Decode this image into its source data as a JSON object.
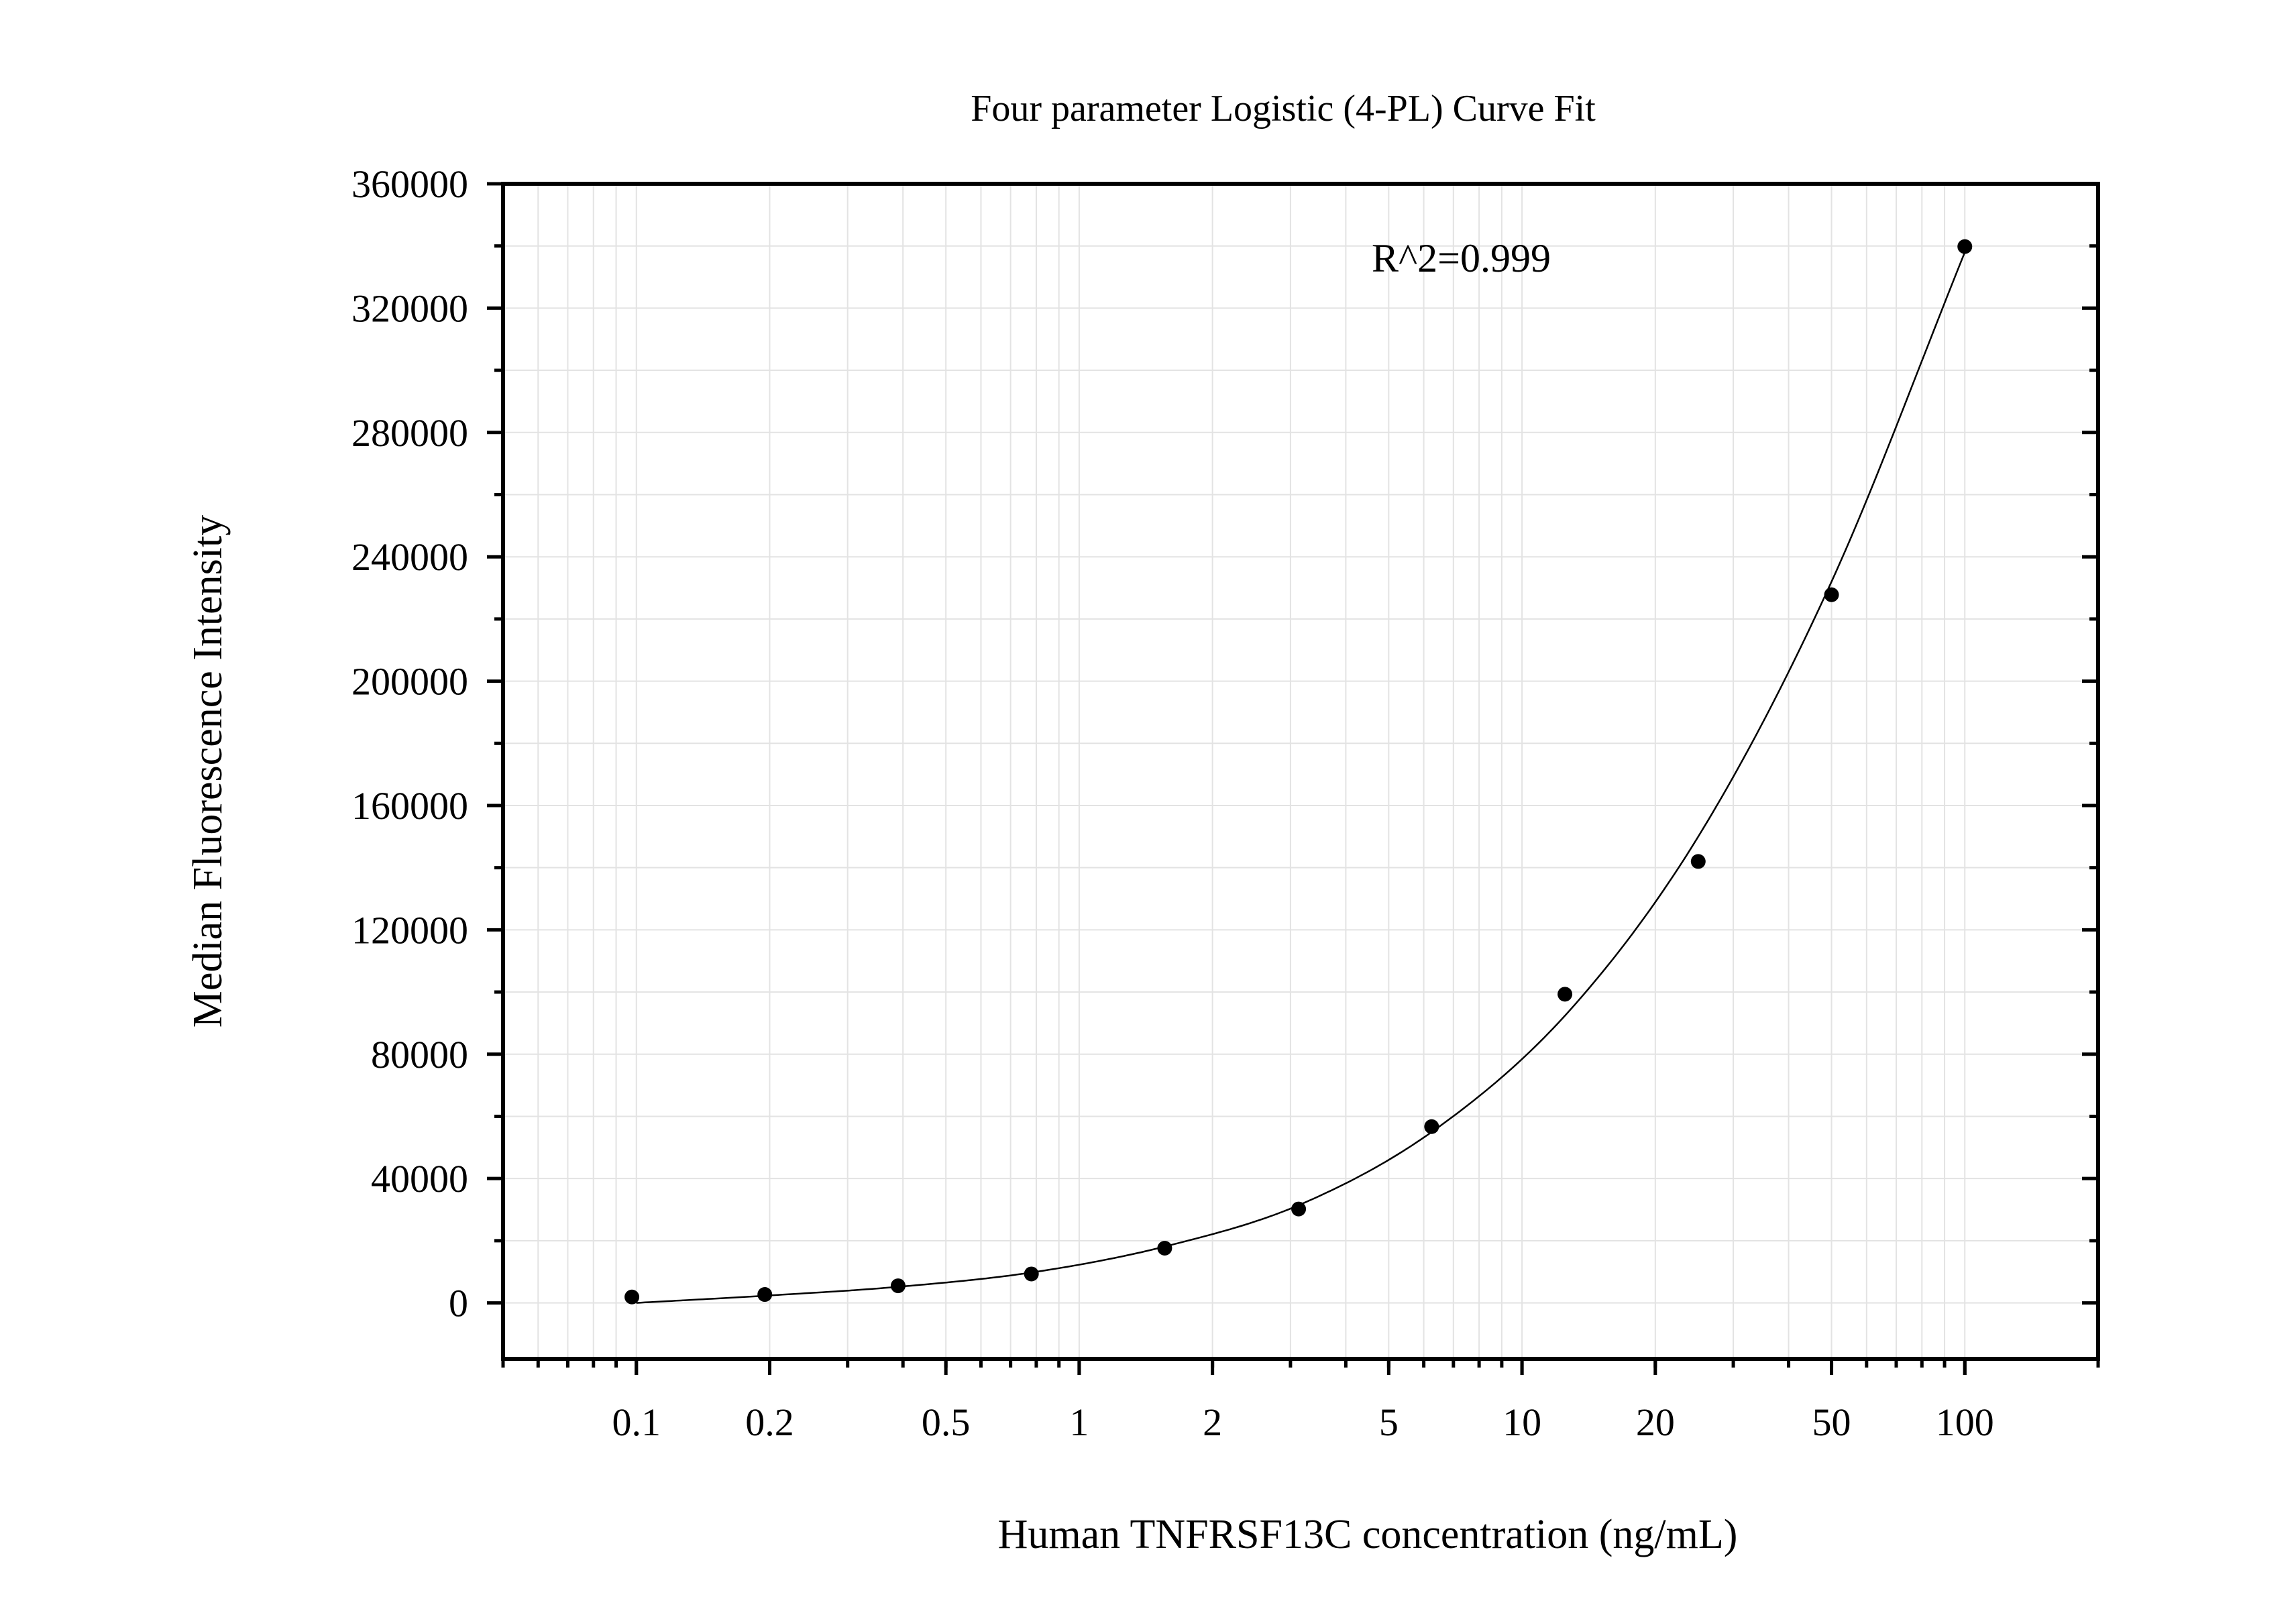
{
  "chart_data": {
    "type": "scatter",
    "title": "Four parameter Logistic (4-PL) Curve Fit",
    "xlabel": "Human TNFRSF13C concentration (ng/mL)",
    "ylabel": "Median Fluorescence Intensity",
    "x_scale": "log",
    "xlim": [
      0.05,
      200
    ],
    "ylim": [
      -18000,
      360000
    ],
    "x_ticks": [
      0.1,
      0.2,
      0.5,
      1,
      2,
      5,
      10,
      20,
      50,
      100
    ],
    "x_tick_labels": [
      "0.1",
      "0.2",
      "0.5",
      "1",
      "2",
      "5",
      "10",
      "20",
      "50",
      "100"
    ],
    "y_ticks": [
      0,
      40000,
      80000,
      120000,
      160000,
      200000,
      240000,
      280000,
      320000,
      360000
    ],
    "y_tick_labels": [
      "0",
      "40000",
      "80000",
      "120000",
      "160000",
      "200000",
      "240000",
      "280000",
      "320000",
      "360000"
    ],
    "grid": true,
    "annotation": "R^2=0.999",
    "series": [
      {
        "kind": "points",
        "x": [
          0.0977,
          0.195,
          0.39,
          0.78,
          1.56,
          3.13,
          6.25,
          12.5,
          25,
          50,
          100
        ],
        "y": [
          1900,
          2700,
          5500,
          9300,
          17600,
          30200,
          56700,
          99300,
          142000,
          227800,
          339800
        ]
      },
      {
        "kind": "fit",
        "x": [
          0.1,
          0.2,
          0.4,
          0.8,
          1.6,
          3.2,
          6.4,
          12.8,
          25,
          50,
          100
        ],
        "y": [
          0,
          2400,
          5300,
          10000,
          18500,
          32000,
          56000,
          94000,
          150000,
          232000,
          338000
        ]
      }
    ],
    "colors": {
      "points": "#000000",
      "curve": "#000000",
      "grid": "#e3e3e3",
      "frame": "#000000"
    }
  }
}
